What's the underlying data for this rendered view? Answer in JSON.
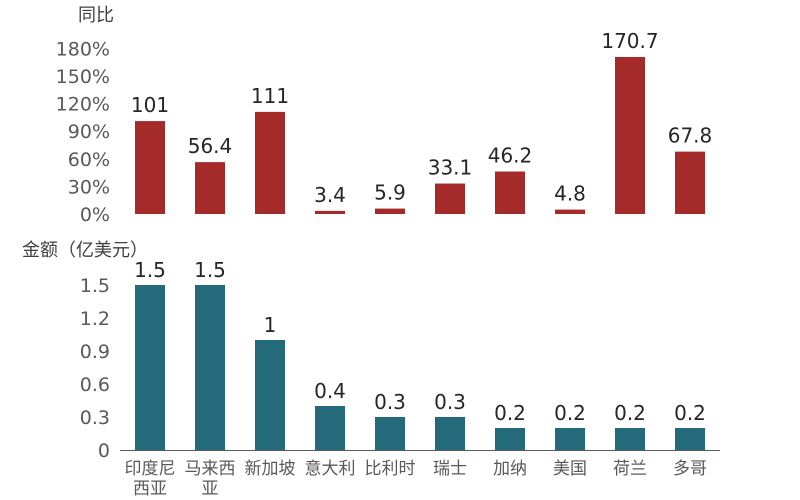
{
  "colors": {
    "top_bar": "#a52a2a",
    "bottom_bar": "#256a7a",
    "axis_line": "#595959"
  },
  "chart_data": [
    {
      "type": "bar",
      "title": "同比",
      "categories": [
        "印度尼西亚",
        "马来西亚",
        "新加坡",
        "意大利",
        "比利时",
        "瑞士",
        "加纳",
        "美国",
        "荷兰",
        "多哥"
      ],
      "values": [
        101,
        56.4,
        111,
        3.4,
        5.9,
        33.1,
        46.2,
        4.8,
        170.7,
        67.8
      ],
      "value_labels": [
        "101",
        "56.4",
        "111",
        "3.4",
        "5.9",
        "33.1",
        "46.2",
        "4.8",
        "170.7",
        "67.8"
      ],
      "ylim": [
        0,
        180
      ],
      "yticks": [
        "0%",
        "30%",
        "60%",
        "90%",
        "120%",
        "150%",
        "180%"
      ],
      "grid": false
    },
    {
      "type": "bar",
      "title": "金额（亿美元）",
      "categories": [
        "印度尼西亚",
        "马来西亚",
        "新加坡",
        "意大利",
        "比利时",
        "瑞士",
        "加纳",
        "美国",
        "荷兰",
        "多哥"
      ],
      "category_lines": [
        [
          "印度尼",
          "西亚"
        ],
        [
          "马来西",
          "亚"
        ],
        [
          "新加坡"
        ],
        [
          "意大利"
        ],
        [
          "比利时"
        ],
        [
          "瑞士"
        ],
        [
          "加纳"
        ],
        [
          "美国"
        ],
        [
          "荷兰"
        ],
        [
          "多哥"
        ]
      ],
      "values": [
        1.5,
        1.5,
        1,
        0.4,
        0.3,
        0.3,
        0.2,
        0.2,
        0.2,
        0.2
      ],
      "value_labels": [
        "1.5",
        "1.5",
        "1",
        "0.4",
        "0.3",
        "0.3",
        "0.2",
        "0.2",
        "0.2",
        "0.2"
      ],
      "ylim": [
        0,
        1.5
      ],
      "yticks": [
        "0",
        "0.3",
        "0.6",
        "0.9",
        "1.2",
        "1.5"
      ],
      "grid": false
    }
  ]
}
